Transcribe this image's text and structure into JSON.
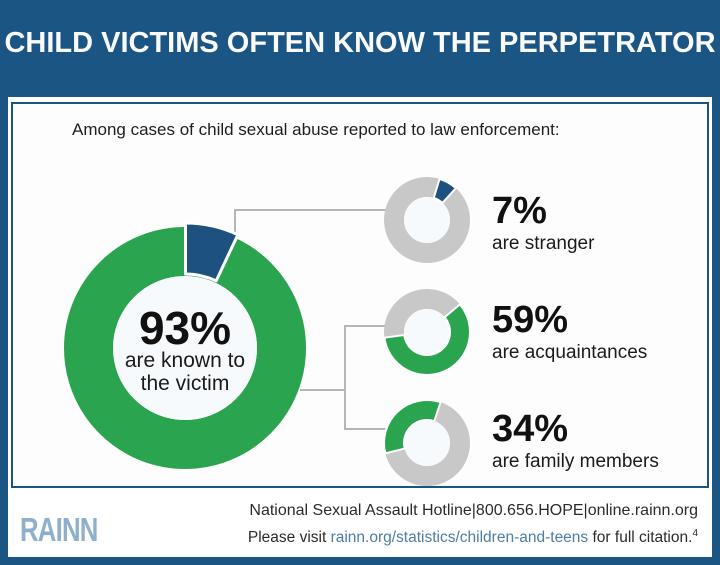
{
  "header": {
    "title": "CHILD VICTIMS OFTEN KNOW THE PERPETRATOR"
  },
  "subtitle": "Among cases of child sexual abuse reported to law enforcement:",
  "chart_data": {
    "type": "pie",
    "title": "Among cases of child sexual abuse reported to law enforcement:",
    "main_donut": {
      "percent": 93,
      "percent_label": "93%",
      "caption_line1": "are known to",
      "caption_line2": "the victim",
      "slice_percent": 7,
      "slice_start_deg": 0,
      "ring_color": "#2aa44e",
      "slice_color": "#1d5180",
      "hole_color": "#f7fafc"
    },
    "small_donuts": [
      {
        "id": "stranger",
        "percent": 7,
        "percent_label": "7%",
        "caption": "are stranger",
        "start_deg": 17,
        "arc_color": "#1d5180",
        "ring_color": "#c8c8c8",
        "hole_color": "#f7fafc"
      },
      {
        "id": "acquaintances",
        "percent": 59,
        "percent_label": "59%",
        "caption": "are acquaintances",
        "start_deg": 50,
        "arc_color": "#2aa44e",
        "ring_color": "#c8c8c8",
        "hole_color": "#f7fafc"
      },
      {
        "id": "family",
        "percent": 34,
        "percent_label": "34%",
        "caption": "are family members",
        "start_deg": 256,
        "arc_color": "#2aa44e",
        "ring_color": "#c8c8c8",
        "hole_color": "#f7fafc"
      }
    ],
    "legend_position": "right",
    "grid": false
  },
  "footer": {
    "logo_text": "RAINN",
    "hotline_line": "National Sexual Assault Hotline|800.656.HOPE|online.rainn.org",
    "citation_prefix": "Please visit ",
    "citation_link": "rainn.org/statistics/children-and-teens",
    "citation_suffix": " for full citation.",
    "citation_note_mark": "4"
  },
  "colors": {
    "frame_blue": "#1b5584",
    "green": "#2aa44e",
    "slice_blue": "#1d5180",
    "ring_gray": "#c8c8c8",
    "link_blue": "#4c7da3",
    "logo_blue": "#8fb0cc",
    "connector_gray": "#b4b7b9"
  }
}
